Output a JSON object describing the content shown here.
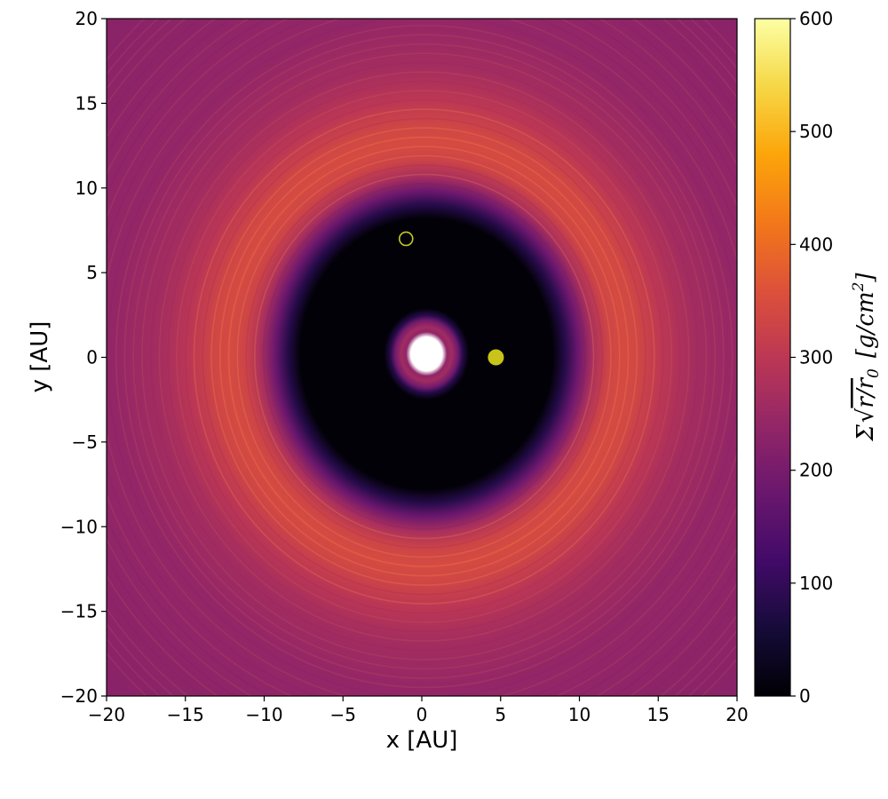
{
  "chart_data": {
    "type": "heatmap",
    "title": "",
    "xlabel": "x [AU]",
    "ylabel": "y [AU]",
    "xlim": [
      -20,
      20
    ],
    "ylim": [
      -20,
      20
    ],
    "xticks": [
      -20,
      -15,
      -10,
      -5,
      0,
      5,
      10,
      15,
      20
    ],
    "yticks": [
      -20,
      -15,
      -10,
      -5,
      0,
      5,
      10,
      15,
      20
    ],
    "xtick_labels": [
      "−20",
      "−15",
      "−10",
      "−5",
      "0",
      "5",
      "10",
      "15",
      "20"
    ],
    "ytick_labels": [
      "−20",
      "−15",
      "−10",
      "−5",
      "0",
      "5",
      "10",
      "15",
      "20"
    ],
    "colormap": "inferno",
    "grid": false,
    "colorbar": {
      "label": "Σ√(r/r₀) [g/cm²]",
      "label_parts": {
        "sigma": "Σ",
        "radicand": "r/r",
        "sub": "0",
        "units": "[g/cm",
        "sup": "2",
        "close": "]"
      },
      "vmin": 0,
      "vmax": 600,
      "ticks": [
        0,
        100,
        200,
        300,
        400,
        500,
        600
      ],
      "tick_labels": [
        "0",
        "100",
        "200",
        "300",
        "400",
        "500",
        "600"
      ]
    },
    "radial_profile": [
      {
        "r": 0.0,
        "value": null
      },
      {
        "r": 1.0,
        "value": null
      },
      {
        "r": 1.3,
        "value": 235
      },
      {
        "r": 1.6,
        "value": 260
      },
      {
        "r": 2.0,
        "value": 190
      },
      {
        "r": 2.3,
        "value": 80
      },
      {
        "r": 2.7,
        "value": 5
      },
      {
        "r": 8.0,
        "value": 5
      },
      {
        "r": 8.8,
        "value": 80
      },
      {
        "r": 9.6,
        "value": 180
      },
      {
        "r": 10.5,
        "value": 270
      },
      {
        "r": 11.5,
        "value": 330
      },
      {
        "r": 12.5,
        "value": 345
      },
      {
        "r": 13.5,
        "value": 335
      },
      {
        "r": 15.0,
        "value": 300
      },
      {
        "r": 17.0,
        "value": 265
      },
      {
        "r": 20.0,
        "value": 240
      },
      {
        "r": 29.0,
        "value": 225
      }
    ],
    "cavity_center_offset": [
      0.3,
      0.2
    ],
    "markers": [
      {
        "name": "planet-marker-open",
        "x": -1.0,
        "y": 7.0,
        "style": "open",
        "color": "#c8c82a"
      },
      {
        "name": "planet-marker-filled",
        "x": 4.7,
        "y": 0.0,
        "style": "filled",
        "color": "#c8c419"
      }
    ]
  }
}
